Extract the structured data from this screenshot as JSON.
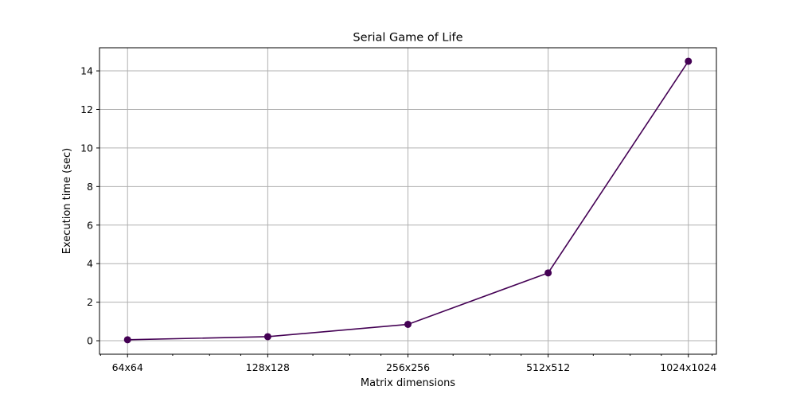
{
  "chart_data": {
    "type": "line",
    "title": "Serial Game of Life",
    "xlabel": "Matrix dimensions",
    "ylabel": "Execution time (sec)",
    "x_scale": "log",
    "categories": [
      "64x64",
      "128x128",
      "256x256",
      "512x512",
      "1024x1024"
    ],
    "matrix_sizes": [
      64,
      128,
      256,
      512,
      1024
    ],
    "values": [
      0.05,
      0.21,
      0.85,
      3.52,
      14.5
    ],
    "ylim": [
      -0.7,
      15.2
    ],
    "yticks": [
      0,
      2,
      4,
      6,
      8,
      10,
      12,
      14
    ],
    "grid": true,
    "line_color": "#440154",
    "marker": "circle"
  }
}
